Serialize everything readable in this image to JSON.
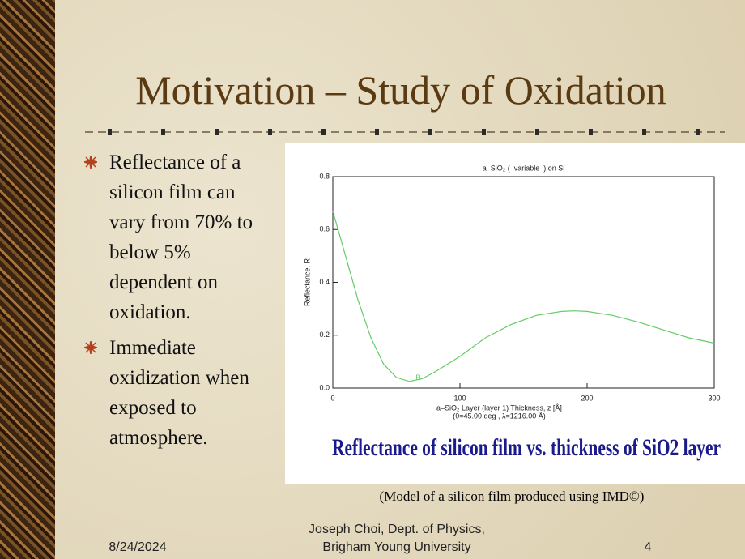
{
  "title": "Motivation – Study of Oxidation",
  "bullets": [
    "Reflectance of a silicon film can vary from 70% to below 5% dependent on oxidation.",
    "Immediate oxidization when exposed to atmosphere."
  ],
  "caption": "(Model of a silicon film produced using IMD©)",
  "footer": {
    "date": "8/24/2024",
    "author": [
      "Joseph Choi, Dept. of Physics,",
      "Brigham Young University"
    ],
    "page": "4"
  },
  "chart_data": {
    "type": "line",
    "title": "a–SiO₂ (–variable–) on Si",
    "ylabel": "Reflectance, R",
    "xlabel": [
      "a–SiO₂ Layer (layer 1) Thickness, z [Å]",
      "(θ=45.00 deg , λ=1216.00 Å)"
    ],
    "banner": "Reflectance of silicon film vs. thickness of SiO2 layer",
    "x": [
      0,
      10,
      20,
      30,
      40,
      50,
      60,
      70,
      80,
      100,
      120,
      140,
      160,
      180,
      190,
      200,
      220,
      240,
      260,
      280,
      300
    ],
    "series": [
      {
        "name": "R",
        "color": "#66cc66",
        "values": [
          0.67,
          0.5,
          0.33,
          0.19,
          0.09,
          0.04,
          0.025,
          0.035,
          0.06,
          0.12,
          0.19,
          0.24,
          0.275,
          0.29,
          0.292,
          0.29,
          0.275,
          0.25,
          0.22,
          0.19,
          0.17
        ]
      }
    ],
    "xlim": [
      0,
      300
    ],
    "xticks": [
      0,
      100,
      200,
      300
    ],
    "ylim": [
      0,
      0.8
    ],
    "yticks": [
      {
        "value": 0,
        "label": "0.0"
      },
      0.2,
      0.4,
      0.6,
      0.8
    ]
  }
}
